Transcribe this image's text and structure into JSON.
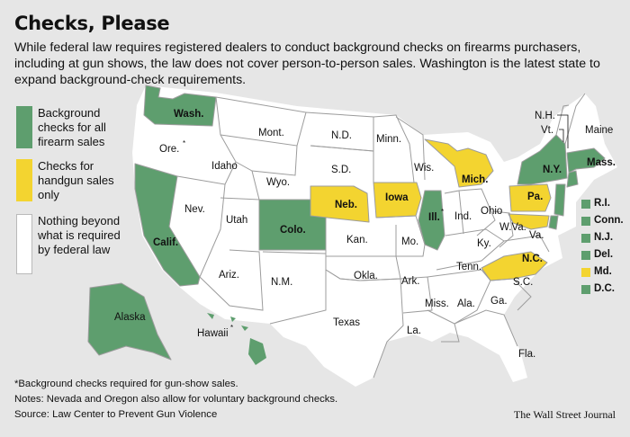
{
  "title": "Checks, Please",
  "subtitle": "While federal law requires registered dealers to conduct background checks on firearms purchasers, including at gun shows, the law does not cover person-to-person sales. Washington is the latest state to expand background-check requirements.",
  "colors": {
    "all_sales": "#5e9e6e",
    "handgun": "#f3d430",
    "none": "#ffffff",
    "background": "#e6e6e6"
  },
  "legend": [
    {
      "label": "Background checks for all firearm sales",
      "color": "#5e9e6e"
    },
    {
      "label": "Checks for handgun sales only",
      "color": "#f3d430"
    },
    {
      "label": "Nothing beyond what is required by federal law",
      "color": "#ffffff"
    }
  ],
  "states": {
    "wash": "Wash.",
    "ore": "Ore.",
    "ore_mark": "*",
    "calif": "Calif.",
    "nev": "Nev.",
    "idaho": "Idaho",
    "mont": "Mont.",
    "wyo": "Wyo.",
    "utah": "Utah",
    "colo": "Colo.",
    "ariz": "Ariz.",
    "nm": "N.M.",
    "nd": "N.D.",
    "sd": "S.D.",
    "neb": "Neb.",
    "kan": "Kan.",
    "okla": "Okla.",
    "texas": "Texas",
    "minn": "Minn.",
    "iowa": "Iowa",
    "mo": "Mo.",
    "ark": "Ark.",
    "la": "La.",
    "wis": "Wis.",
    "ill": "Ill.",
    "ill_mark": "*",
    "mich": "Mich.",
    "ind": "Ind.",
    "ohio": "Ohio",
    "ky": "Ky.",
    "tenn": "Tenn.",
    "miss": "Miss.",
    "ala": "Ala.",
    "ga": "Ga.",
    "fla": "Fla.",
    "sc": "S.C.",
    "nc": "N.C.",
    "va": "Va.",
    "wva": "W.Va.",
    "pa": "Pa.",
    "ny": "N.Y.",
    "vt": "Vt.",
    "nh": "N.H.",
    "maine": "Maine",
    "mass": "Mass.",
    "alaska": "Alaska",
    "hawaii": "Hawaii",
    "hawaii_mark": "*"
  },
  "small_states": [
    {
      "label": "R.I.",
      "status": "all"
    },
    {
      "label": "Conn.",
      "status": "all"
    },
    {
      "label": "N.J.",
      "status": "all"
    },
    {
      "label": "Del.",
      "status": "all"
    },
    {
      "label": "Md.",
      "status": "handgun"
    },
    {
      "label": "D.C.",
      "status": "all"
    }
  ],
  "footnotes": {
    "asterisk": "*Background checks required for gun-show sales.",
    "notes": "Notes: Nevada and Oregon also allow for voluntary background checks.",
    "source": "Source: Law Center to Prevent Gun Violence"
  },
  "credit": "The Wall Street Journal"
}
